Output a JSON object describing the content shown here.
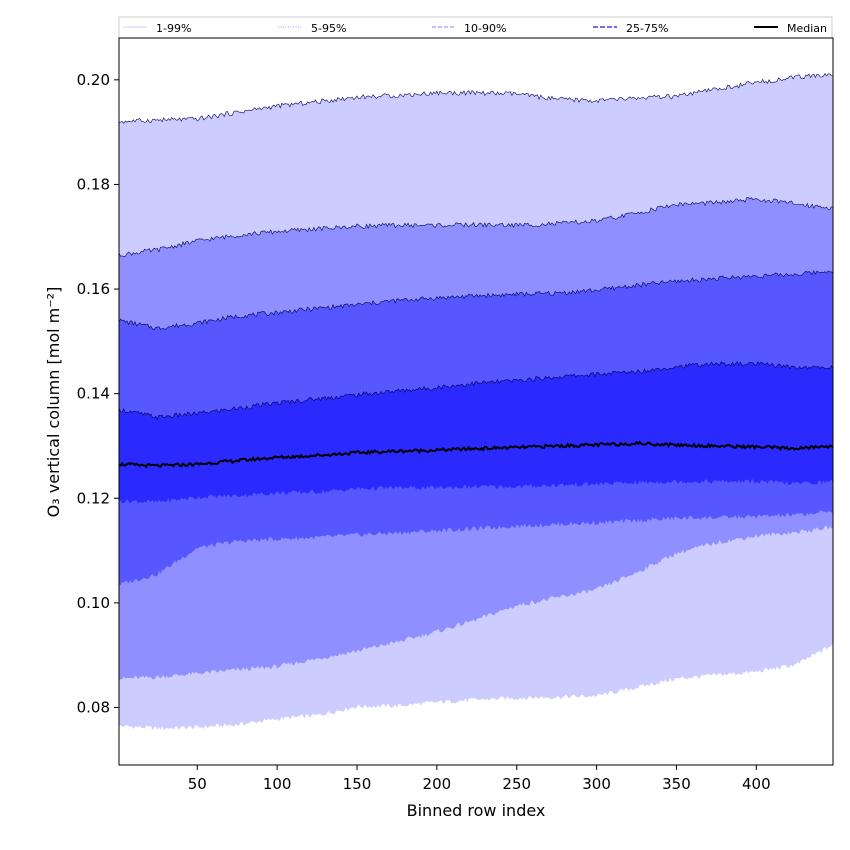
{
  "chart_data": {
    "type": "area",
    "title": "",
    "xlabel": "Binned row index",
    "ylabel": "O₃ vertical column [mol m⁻²]",
    "xlim": [
      1,
      448
    ],
    "ylim": [
      0.069,
      0.208
    ],
    "xticks": [
      50,
      100,
      150,
      200,
      250,
      300,
      350,
      400
    ],
    "yticks": [
      0.08,
      0.1,
      0.12,
      0.14,
      0.16,
      0.18,
      0.2
    ],
    "ytick_labels": [
      "0.08",
      "0.10",
      "0.12",
      "0.14",
      "0.16",
      "0.18",
      "0.20"
    ],
    "grid": false,
    "legend_position": "top",
    "legend": [
      {
        "label": "1-99%",
        "color": "#ccccff",
        "style": "solid"
      },
      {
        "label": "5-95%",
        "color": "#9999ff",
        "style": "dotted"
      },
      {
        "label": "10-90%",
        "color": "#8080ff",
        "style": "dashed"
      },
      {
        "label": "25-75%",
        "color": "#4040ff",
        "style": "dashed"
      },
      {
        "label": "Median",
        "color": "#000000",
        "style": "solid"
      }
    ],
    "x": [
      1,
      25,
      50,
      75,
      100,
      125,
      150,
      175,
      200,
      225,
      250,
      275,
      300,
      325,
      350,
      375,
      400,
      425,
      448
    ],
    "series": [
      {
        "name": "p1",
        "values": [
          0.0765,
          0.076,
          0.0762,
          0.0767,
          0.0778,
          0.0785,
          0.0802,
          0.0803,
          0.081,
          0.0815,
          0.0818,
          0.082,
          0.0822,
          0.0838,
          0.0855,
          0.0862,
          0.0868,
          0.0882,
          0.092
        ]
      },
      {
        "name": "p5",
        "values": [
          0.0855,
          0.0858,
          0.0865,
          0.0872,
          0.0878,
          0.0893,
          0.0908,
          0.0925,
          0.0945,
          0.0968,
          0.0995,
          0.101,
          0.1025,
          0.1058,
          0.1095,
          0.1115,
          0.1128,
          0.1135,
          0.1145
        ]
      },
      {
        "name": "p10",
        "values": [
          0.1035,
          0.1055,
          0.1105,
          0.1118,
          0.1122,
          0.1125,
          0.113,
          0.1134,
          0.1138,
          0.1142,
          0.1147,
          0.115,
          0.1153,
          0.1157,
          0.1162,
          0.1163,
          0.1165,
          0.1168,
          0.1175
        ]
      },
      {
        "name": "p25",
        "values": [
          0.1195,
          0.1193,
          0.1202,
          0.1205,
          0.121,
          0.1212,
          0.1218,
          0.122,
          0.122,
          0.1222,
          0.1222,
          0.1225,
          0.1227,
          0.123,
          0.1232,
          0.1232,
          0.1232,
          0.1228,
          0.1232
        ]
      },
      {
        "name": "Median",
        "values": [
          0.1265,
          0.1262,
          0.1265,
          0.1272,
          0.1278,
          0.1282,
          0.1287,
          0.129,
          0.1292,
          0.1295,
          0.1297,
          0.13,
          0.1302,
          0.1305,
          0.1302,
          0.13,
          0.1298,
          0.1295,
          0.13
        ]
      },
      {
        "name": "p75",
        "values": [
          0.137,
          0.1355,
          0.1362,
          0.1372,
          0.1382,
          0.139,
          0.1398,
          0.1405,
          0.1412,
          0.142,
          0.1425,
          0.1432,
          0.1437,
          0.1442,
          0.1452,
          0.1457,
          0.1457,
          0.145,
          0.145
        ]
      },
      {
        "name": "p90",
        "values": [
          0.154,
          0.1525,
          0.1535,
          0.1548,
          0.1555,
          0.1563,
          0.157,
          0.1578,
          0.1583,
          0.1587,
          0.159,
          0.1592,
          0.1598,
          0.1607,
          0.1615,
          0.162,
          0.1625,
          0.1628,
          0.1635
        ]
      },
      {
        "name": "p95",
        "values": [
          0.1665,
          0.1675,
          0.1692,
          0.1703,
          0.171,
          0.1715,
          0.172,
          0.1722,
          0.1722,
          0.1723,
          0.1722,
          0.1725,
          0.173,
          0.1745,
          0.1762,
          0.1765,
          0.1772,
          0.1763,
          0.1755
        ]
      },
      {
        "name": "p99",
        "values": [
          0.192,
          0.1923,
          0.1925,
          0.1938,
          0.195,
          0.1958,
          0.1967,
          0.197,
          0.1975,
          0.1975,
          0.1973,
          0.1963,
          0.196,
          0.1965,
          0.1968,
          0.1982,
          0.1995,
          0.2005,
          0.201
        ]
      }
    ],
    "bands": [
      {
        "label": "1-99%",
        "lower": "p1",
        "upper": "p99",
        "fill": "#ccccff"
      },
      {
        "label": "5-95%",
        "lower": "p5",
        "upper": "p95",
        "fill": "#8f8fff"
      },
      {
        "label": "10-90%",
        "lower": "p10",
        "upper": "p90",
        "fill": "#5757ff"
      },
      {
        "label": "25-75%",
        "lower": "p25",
        "upper": "p75",
        "fill": "#2a2aff"
      }
    ]
  }
}
